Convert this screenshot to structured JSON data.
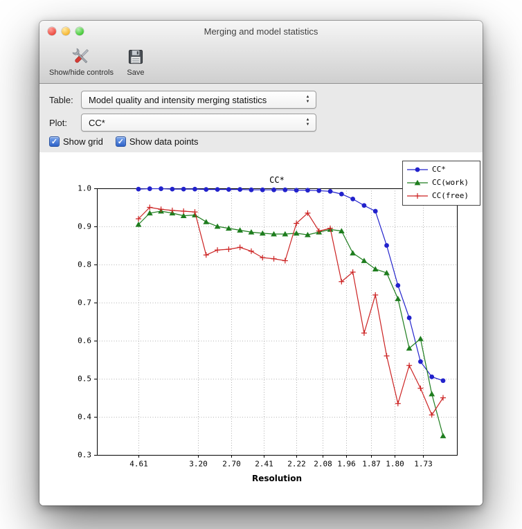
{
  "window": {
    "title": "Merging and model statistics"
  },
  "toolbar": {
    "buttons": [
      {
        "label": "Show/hide controls",
        "icon": "tools-icon"
      },
      {
        "label": "Save",
        "icon": "save-icon"
      }
    ]
  },
  "controls": {
    "table_label": "Table:",
    "table_value": "Model quality and intensity merging statistics",
    "plot_label": "Plot:",
    "plot_value": "CC*",
    "checkboxes": [
      {
        "label": "Show grid",
        "checked": true
      },
      {
        "label": "Show data points",
        "checked": true
      }
    ]
  },
  "chart_data": {
    "type": "line",
    "title": "CC*",
    "xlabel": "Resolution",
    "ylabel": "",
    "ylim": [
      0.3,
      1.0
    ],
    "yticks": [
      0.3,
      0.4,
      0.5,
      0.6,
      0.7,
      0.8,
      0.9,
      1.0
    ],
    "grid": true,
    "legend_position": "upper-right",
    "xticks": [
      {
        "label": "4.61",
        "pos": 0
      },
      {
        "label": "3.20",
        "pos": 5.3
      },
      {
        "label": "2.70",
        "pos": 8.2
      },
      {
        "label": "2.41",
        "pos": 11.1
      },
      {
        "label": "2.22",
        "pos": 14.0
      },
      {
        "label": "2.08",
        "pos": 16.3
      },
      {
        "label": "1.96",
        "pos": 18.4
      },
      {
        "label": "1.87",
        "pos": 20.6
      },
      {
        "label": "1.80",
        "pos": 22.7
      },
      {
        "label": "1.73",
        "pos": 25.2
      }
    ],
    "series": [
      {
        "name": "CC*",
        "color": "#2222cc",
        "marker": "circle",
        "values": [
          0.998,
          0.999,
          0.999,
          0.998,
          0.998,
          0.998,
          0.997,
          0.997,
          0.997,
          0.997,
          0.996,
          0.996,
          0.996,
          0.996,
          0.995,
          0.995,
          0.994,
          0.992,
          0.985,
          0.972,
          0.955,
          0.94,
          0.85,
          0.745,
          0.66,
          0.545,
          0.505,
          0.495
        ]
      },
      {
        "name": "CC(work)",
        "color": "#1e7d1e",
        "marker": "triangle",
        "values": [
          0.905,
          0.935,
          0.94,
          0.935,
          0.928,
          0.93,
          0.912,
          0.9,
          0.895,
          0.89,
          0.885,
          0.882,
          0.88,
          0.88,
          0.882,
          0.878,
          0.885,
          0.892,
          0.888,
          0.83,
          0.81,
          0.788,
          0.778,
          0.71,
          0.58,
          0.605,
          0.46,
          0.35
        ]
      },
      {
        "name": "CC(free)",
        "color": "#cc2222",
        "marker": "plus",
        "values": [
          0.92,
          0.95,
          0.945,
          0.942,
          0.94,
          0.938,
          0.825,
          0.838,
          0.84,
          0.845,
          0.835,
          0.818,
          0.815,
          0.81,
          0.908,
          0.935,
          0.888,
          0.895,
          0.755,
          0.78,
          0.62,
          0.72,
          0.56,
          0.435,
          0.535,
          0.475,
          0.405,
          0.45
        ]
      }
    ]
  }
}
